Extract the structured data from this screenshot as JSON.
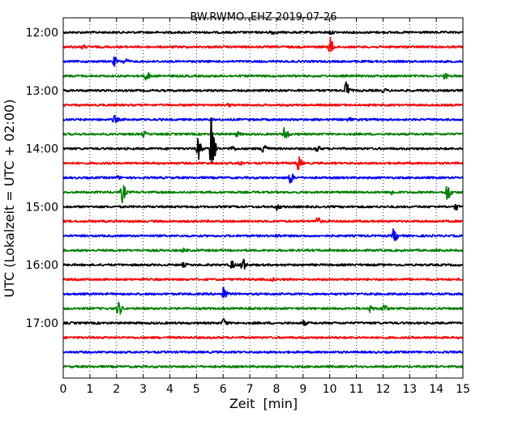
{
  "chart_data": {
    "type": "line",
    "title": "BW.RWMO..EHZ 2019-07-26",
    "xlabel": "Zeit  [min]",
    "ylabel": "UTC (Lokalzeit = UTC + 02:00)",
    "xlim": [
      0,
      15
    ],
    "x_ticks": [
      "0",
      "1",
      "2",
      "3",
      "4",
      "5",
      "6",
      "7",
      "8",
      "9",
      "10",
      "11",
      "12",
      "13",
      "14",
      "15"
    ],
    "y_ticks": [
      {
        "label": "12:00",
        "row": 0
      },
      {
        "label": "13:00",
        "row": 4
      },
      {
        "label": "14:00",
        "row": 8
      },
      {
        "label": "15:00",
        "row": 12
      },
      {
        "label": "16:00",
        "row": 16
      },
      {
        "label": "17:00",
        "row": 20
      }
    ],
    "row_minutes": 15,
    "start_time": "12:00",
    "grid": "vertical dotted",
    "colors": [
      "#000000",
      "#ff0000",
      "#0000ff",
      "#008000"
    ],
    "rows": [
      {
        "events": [
          {
            "t": 7.8,
            "a": 0.4
          },
          {
            "t": 10.0,
            "a": 0.3
          }
        ]
      },
      {
        "events": [
          {
            "t": 10.0,
            "a": 1.8
          },
          {
            "t": 0.7,
            "a": 0.3
          }
        ]
      },
      {
        "events": [
          {
            "t": 1.9,
            "a": 0.8
          },
          {
            "t": 2.3,
            "a": 0.6
          }
        ]
      },
      {
        "events": [
          {
            "t": 3.1,
            "a": 1.0
          },
          {
            "t": 14.3,
            "a": 0.5
          }
        ]
      },
      {
        "events": [
          {
            "t": 10.6,
            "a": 1.8
          },
          {
            "t": 12.0,
            "a": 0.3
          }
        ]
      },
      {
        "events": [
          {
            "t": 6.2,
            "a": 0.2
          }
        ]
      },
      {
        "events": [
          {
            "t": 1.9,
            "a": 0.8
          },
          {
            "t": 10.7,
            "a": 0.3
          }
        ]
      },
      {
        "events": [
          {
            "t": 8.3,
            "a": 1.5
          },
          {
            "t": 3.0,
            "a": 0.5
          },
          {
            "t": 6.5,
            "a": 0.4
          }
        ]
      },
      {
        "events": [
          {
            "t": 5.55,
            "a": 8.5
          },
          {
            "t": 5.05,
            "a": 2.2
          },
          {
            "t": 7.5,
            "a": 1.6
          },
          {
            "t": 6.3,
            "a": 0.6
          },
          {
            "t": 9.5,
            "a": 0.6
          }
        ]
      },
      {
        "events": [
          {
            "t": 8.8,
            "a": 1.5
          },
          {
            "t": 6.6,
            "a": 0.4
          }
        ]
      },
      {
        "events": [
          {
            "t": 8.5,
            "a": 1.2
          },
          {
            "t": 2.0,
            "a": 0.3
          }
        ]
      },
      {
        "events": [
          {
            "t": 2.2,
            "a": 2.0
          },
          {
            "t": 14.4,
            "a": 1.8
          },
          {
            "t": 12.3,
            "a": 0.5
          }
        ]
      },
      {
        "events": [
          {
            "t": 8.0,
            "a": 0.6
          },
          {
            "t": 14.7,
            "a": 0.6
          }
        ]
      },
      {
        "events": [
          {
            "t": 9.5,
            "a": 1.0
          }
        ]
      },
      {
        "events": [
          {
            "t": 12.4,
            "a": 1.4
          },
          {
            "t": 8.0,
            "a": 0.3
          }
        ]
      },
      {
        "events": [
          {
            "t": 4.5,
            "a": 0.3
          }
        ]
      },
      {
        "events": [
          {
            "t": 6.7,
            "a": 1.6
          },
          {
            "t": 6.3,
            "a": 0.8
          },
          {
            "t": 4.5,
            "a": 0.3
          }
        ]
      },
      {
        "events": [
          {
            "t": 7.8,
            "a": 0.3
          }
        ]
      },
      {
        "events": [
          {
            "t": 6.0,
            "a": 1.6
          }
        ]
      },
      {
        "events": [
          {
            "t": 2.05,
            "a": 1.6
          },
          {
            "t": 12.0,
            "a": 1.0
          },
          {
            "t": 11.5,
            "a": 0.7
          }
        ]
      },
      {
        "events": [
          {
            "t": 6.0,
            "a": 0.9
          },
          {
            "t": 9.0,
            "a": 0.4
          }
        ]
      },
      {
        "events": []
      },
      {
        "events": []
      },
      {
        "events": []
      }
    ]
  }
}
